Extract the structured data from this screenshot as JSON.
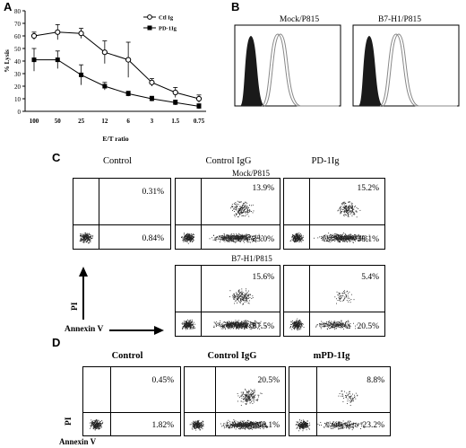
{
  "panel_letters": {
    "a": "A",
    "b": "B",
    "c": "C",
    "d": "D"
  },
  "colors": {
    "ink": "#000000",
    "histogram_fill": "#1a1a1a",
    "histogram_line": "#888888"
  },
  "chart_data": [
    {
      "id": "A",
      "type": "line",
      "categories": [
        "100",
        "50",
        "25",
        "12",
        "6",
        "3",
        "1.5",
        "0.75"
      ],
      "series": [
        {
          "name": "Ctl Ig",
          "marker": "open-circle",
          "values": [
            60,
            63,
            62,
            47,
            41,
            23,
            15,
            10
          ],
          "errors": [
            3,
            6,
            4,
            9,
            14,
            3,
            4,
            3
          ]
        },
        {
          "name": "PD-1Ig",
          "marker": "filled-square",
          "values": [
            41,
            41,
            29,
            20,
            14,
            10,
            7,
            4
          ],
          "errors": [
            9,
            7,
            8,
            3,
            2,
            2,
            2,
            2
          ]
        }
      ],
      "ylabel": "% Lysis",
      "xlabel": "E/T ratio",
      "ylim": [
        0,
        80
      ],
      "yticks": [
        "0",
        "10",
        "20",
        "30",
        "40",
        "50",
        "60",
        "70",
        "80"
      ],
      "legend_position": "top-right"
    },
    {
      "id": "B",
      "type": "histogram",
      "panels": [
        "Mock/P815",
        "B7-H1/P815"
      ]
    }
  ],
  "panel_c": {
    "col_headers": [
      "Control",
      "Control IgG",
      "PD-1Ig"
    ],
    "row1_label": "Mock/P815",
    "row2_label": "B7-H1/P815",
    "y_axis": "PI",
    "x_axis": "Annexin V",
    "row1": [
      {
        "ur": "0.31%",
        "lr": "0.84%"
      },
      {
        "ur": "13.9%",
        "lr": "33.0%"
      },
      {
        "ur": "15.2%",
        "lr": "38.1%"
      }
    ],
    "row2": [
      {
        "ur": "15.6%",
        "lr": "37.5%"
      },
      {
        "ur": "5.4%",
        "lr": "20.5%"
      }
    ]
  },
  "panel_d": {
    "col_headers": [
      "Control",
      "Control IgG",
      "mPD-1Ig"
    ],
    "y_axis": "PI",
    "x_axis": "Annexin V",
    "plots": [
      {
        "ur": "0.45%",
        "lr": "1.82%"
      },
      {
        "ur": "20.5%",
        "lr": "48.1%"
      },
      {
        "ur": "8.8%",
        "lr": "23.2%"
      }
    ]
  }
}
